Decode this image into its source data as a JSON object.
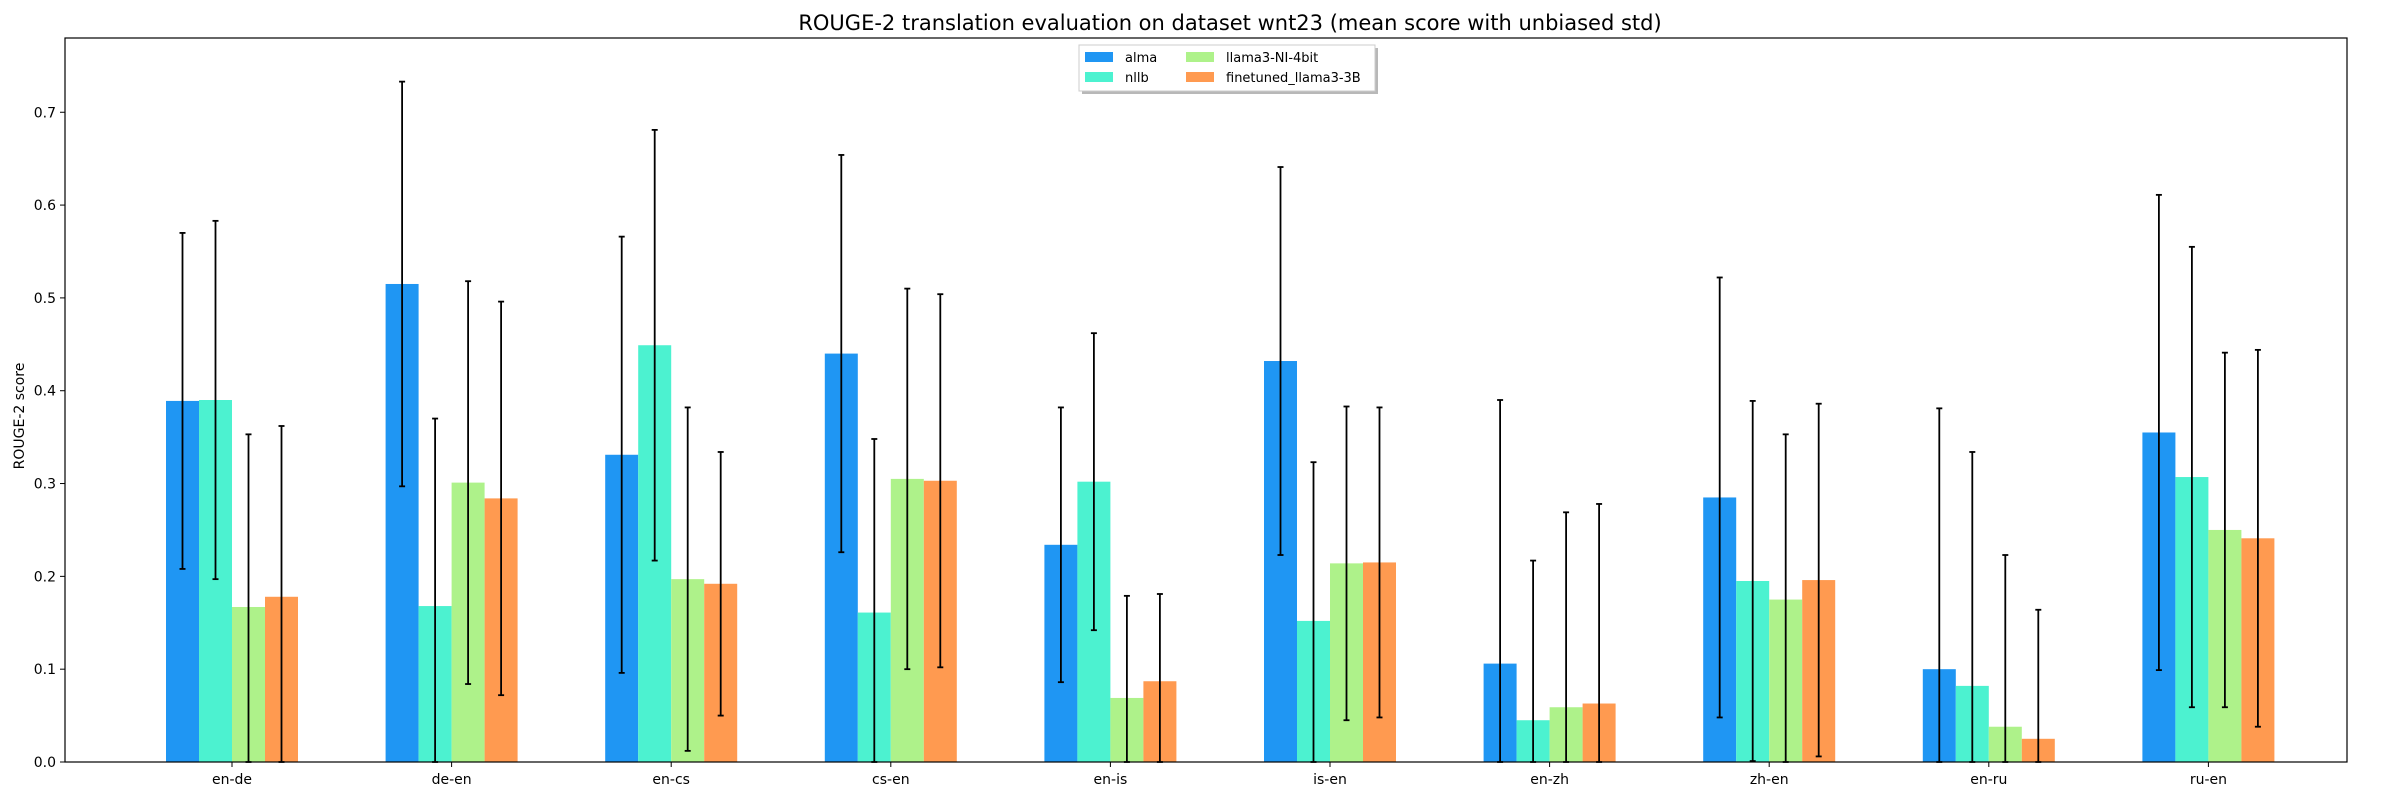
{
  "chart_data": {
    "type": "bar",
    "title": "ROUGE-2 translation evaluation on dataset wnt23 (mean score with unbiased std)",
    "xlabel": "",
    "ylabel": "ROUGE-2 score",
    "ylim": [
      0,
      0.78
    ],
    "yticks": [
      "0.0",
      "0.1",
      "0.2",
      "0.3",
      "0.4",
      "0.5",
      "0.6",
      "0.7"
    ],
    "grid": false,
    "legend_position": "top-center",
    "categories": [
      "en-de",
      "de-en",
      "en-cs",
      "cs-en",
      "en-is",
      "is-en",
      "en-zh",
      "zh-en",
      "en-ru",
      "ru-en"
    ],
    "series": [
      {
        "name": "alma",
        "color": "#1f96f3",
        "values": [
          0.389,
          0.515,
          0.331,
          0.44,
          0.234,
          0.432,
          0.106,
          0.285,
          0.1,
          0.355
        ],
        "err": [
          0.181,
          0.218,
          0.235,
          0.214,
          0.148,
          0.209,
          0.284,
          0.237,
          0.281,
          0.256
        ]
      },
      {
        "name": "nllb",
        "color": "#4cf2d0",
        "values": [
          0.39,
          0.168,
          0.449,
          0.161,
          0.302,
          0.152,
          0.045,
          0.195,
          0.082,
          0.307
        ],
        "err": [
          0.193,
          0.202,
          0.232,
          0.187,
          0.16,
          0.171,
          0.172,
          0.194,
          0.252,
          0.248
        ]
      },
      {
        "name": "llama3-NI-4bit",
        "color": "#aef28a",
        "values": [
          0.167,
          0.301,
          0.197,
          0.305,
          0.069,
          0.214,
          0.059,
          0.175,
          0.038,
          0.25
        ],
        "err": [
          0.186,
          0.217,
          0.185,
          0.205,
          0.11,
          0.169,
          0.21,
          0.178,
          0.185,
          0.191
        ]
      },
      {
        "name": "finetuned_llama3-3B",
        "color": "#ff9a50",
        "values": [
          0.178,
          0.284,
          0.192,
          0.303,
          0.087,
          0.215,
          0.063,
          0.196,
          0.025,
          0.241
        ],
        "err": [
          0.184,
          0.212,
          0.142,
          0.201,
          0.094,
          0.167,
          0.215,
          0.19,
          0.139,
          0.203
        ]
      }
    ]
  }
}
